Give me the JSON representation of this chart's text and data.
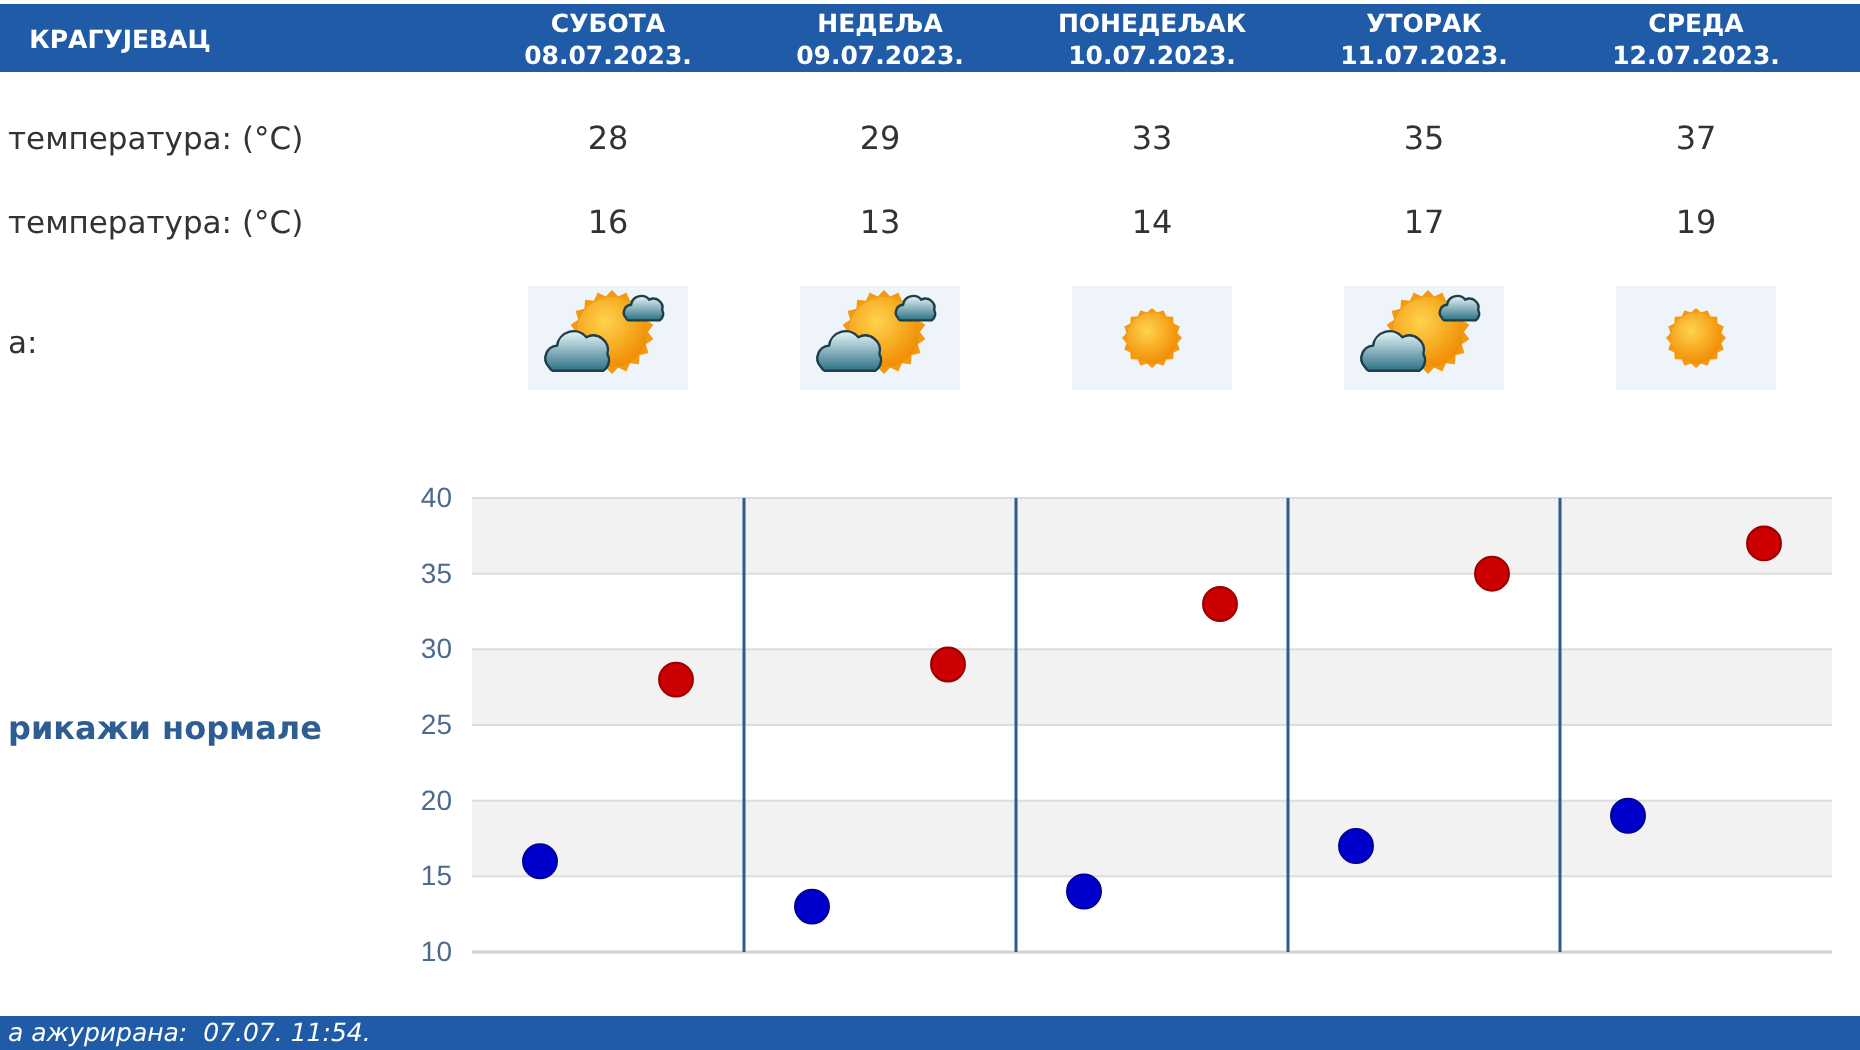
{
  "chart_data": [
    {
      "type": "other",
      "title": "КРАГУЈЕВАЦ",
      "categories": [
        "СУБОТА 08.07.2023.",
        "НЕДЕЉА 09.07.2023.",
        "ПОНЕДЕЉАК 10.07.2023.",
        "УТОРАК 11.07.2023.",
        "СРЕДА 12.07.2023."
      ],
      "series": [
        {
          "values": [
            28,
            29,
            33,
            35,
            37
          ]
        },
        {
          "values": [
            16,
            13,
            14,
            17,
            19
          ]
        }
      ],
      "data_labels": true,
      "annotations": [
        "температура: (°C)",
        "температура: (°C)",
        "а:"
      ]
    },
    {
      "type": "scatter",
      "categories": [
        null,
        null,
        null,
        null,
        null
      ],
      "series": [
        {
          "color": "#cc0000",
          "values": [
            28,
            29,
            33,
            35,
            37
          ]
        },
        {
          "color": "#0000cc",
          "values": [
            16,
            13,
            14,
            17,
            19
          ]
        }
      ],
      "ylim": [
        10,
        40
      ],
      "yticks": [
        10,
        15,
        20,
        25,
        30,
        35,
        40
      ],
      "grid": true,
      "marker": "circle",
      "annotations": [
        "рикажи нормале",
        "а ажурирана:  07.07. 11:54."
      ]
    }
  ]
}
